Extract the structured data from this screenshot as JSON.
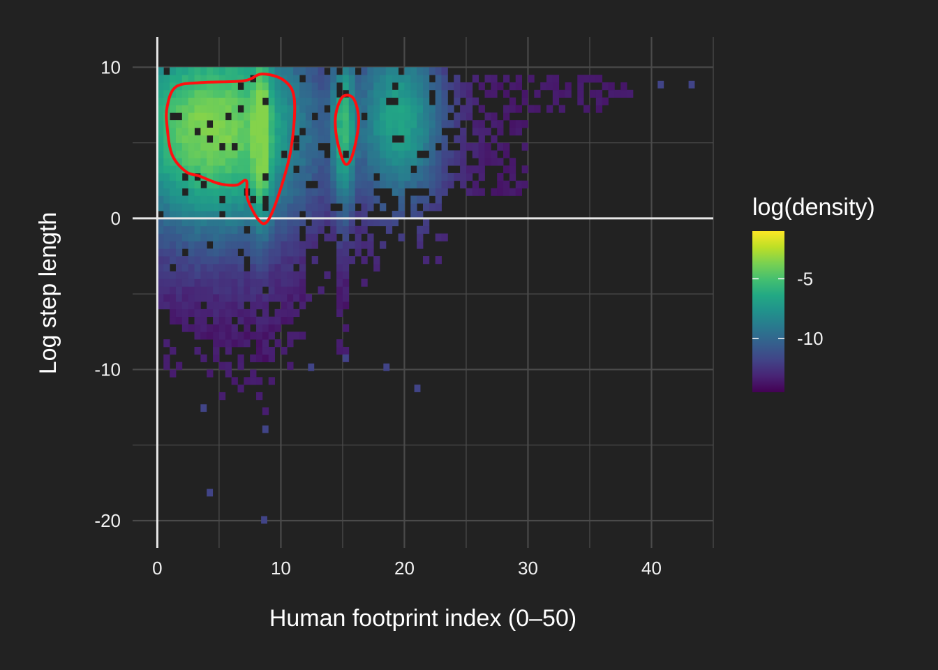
{
  "chart_data": {
    "type": "heatmap",
    "title": "",
    "xlabel": "Human footprint index (0–50)",
    "ylabel": "Log step length",
    "xlim": [
      -2,
      45
    ],
    "ylim": [
      -21.8,
      12
    ],
    "x_ticks": [
      0,
      10,
      20,
      30,
      40
    ],
    "x_tick_labels": [
      "0",
      "10",
      "20",
      "30",
      "40"
    ],
    "y_ticks": [
      -20,
      -10,
      0,
      10
    ],
    "y_tick_labels": [
      "-20",
      "-10",
      "0",
      "10"
    ],
    "grid": true,
    "reference_lines": [
      {
        "axis": "y",
        "value": 0
      },
      {
        "axis": "x",
        "value": 0
      }
    ],
    "bin_width": {
      "x": 0.5,
      "y": 0.5
    },
    "colorscale": "viridis",
    "legend": {
      "title": "log(density)",
      "position": "right",
      "range": [
        -14.5,
        -1
      ],
      "ticks": [
        -5,
        -10
      ],
      "tick_labels": [
        "-5",
        "-10"
      ]
    },
    "density_model": {
      "max_log_density": -3.5,
      "cores": [
        {
          "x": 4.5,
          "y": 6.0,
          "sx": 3.4,
          "sy": 3.0,
          "weight": 1.0
        },
        {
          "x": 8.4,
          "y": 5.5,
          "sx": 0.45,
          "sy": 2.8,
          "weight": 1.1
        },
        {
          "x": 15.1,
          "y": 6.0,
          "sx": 0.5,
          "sy": 2.5,
          "weight": 0.55
        },
        {
          "x": 19.5,
          "y": 6.5,
          "sx": 1.6,
          "sy": 2.5,
          "weight": 0.35
        }
      ],
      "occupancy": {
        "main_x_range": [
          0,
          23.5
        ],
        "sparse_x_range": [
          23.5,
          38.5
        ],
        "y_top": 9.8,
        "isolated_points": [
          [
            8.4,
            -20.2
          ],
          [
            4,
            -18.4
          ],
          [
            8.5,
            -14.2
          ],
          [
            3.5,
            -12.8
          ],
          [
            20.8,
            -11.5
          ],
          [
            15,
            -9.5
          ],
          [
            12.2,
            -10.1
          ],
          [
            18.3,
            -10.1
          ],
          [
            43,
            8.6
          ],
          [
            40.5,
            8.6
          ]
        ]
      }
    },
    "contours": [
      {
        "level": "high density region 1",
        "points": [
          [
            0.8,
            7.4
          ],
          [
            1.5,
            8.7
          ],
          [
            3.5,
            8.98
          ],
          [
            7.0,
            9.1
          ],
          [
            8.5,
            9.55
          ],
          [
            10.3,
            9.1
          ],
          [
            11.1,
            7.8
          ],
          [
            10.8,
            4.5
          ],
          [
            9.8,
            1.5
          ],
          [
            8.9,
            -0.2
          ],
          [
            8.2,
            -0.1
          ],
          [
            7.3,
            1.3
          ],
          [
            7.2,
            2.5
          ],
          [
            6.4,
            2.2
          ],
          [
            5.0,
            2.3
          ],
          [
            3.4,
            2.8
          ],
          [
            2.3,
            3.1
          ],
          [
            1.2,
            4.2
          ],
          [
            0.8,
            6.0
          ]
        ]
      },
      {
        "level": "high density region 2",
        "points": [
          [
            14.6,
            7.4
          ],
          [
            15.1,
            8.1
          ],
          [
            15.9,
            7.9
          ],
          [
            16.3,
            6.4
          ],
          [
            15.8,
            4.2
          ],
          [
            15.2,
            3.6
          ],
          [
            14.6,
            5.0
          ],
          [
            14.4,
            6.4
          ]
        ]
      }
    ],
    "colors": {
      "background": "#222222",
      "grid": "#4a4a4a",
      "reference_line": "#e8e8e8",
      "contour": "#ff1010",
      "text": "#f2f2f2"
    }
  }
}
